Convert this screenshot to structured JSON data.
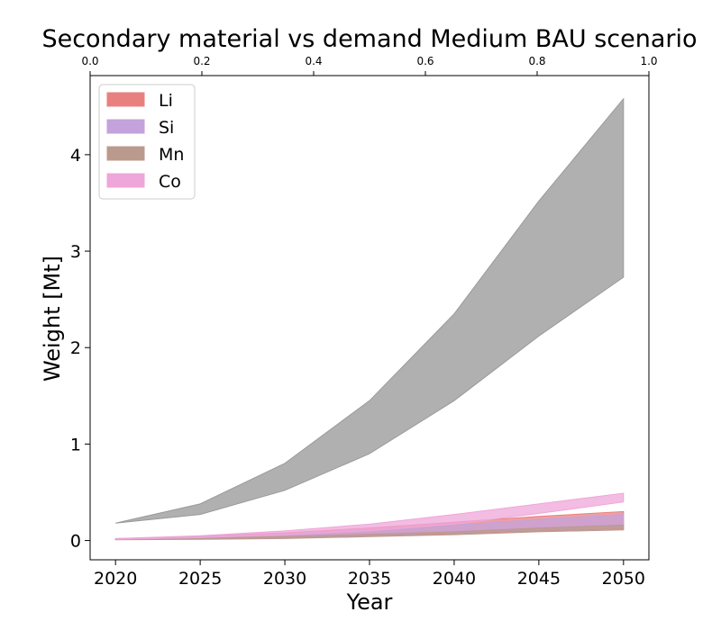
{
  "chart_data": {
    "type": "area",
    "title": "Secondary material vs demand Medium BAU scenario",
    "xlabel": "Year",
    "ylabel": "Weight [Mt]",
    "xlim": [
      2018.5,
      2051.5
    ],
    "ylim": [
      -0.2,
      4.82
    ],
    "x_ticks": [
      2020,
      2025,
      2030,
      2035,
      2040,
      2045,
      2050
    ],
    "y_ticks": [
      0,
      1,
      2,
      3,
      4
    ],
    "top_axis": {
      "lim": [
        0,
        1
      ],
      "ticks": [
        "0.0",
        "0.2",
        "0.4",
        "0.6",
        "0.8",
        "1.0"
      ]
    },
    "legend_position": "upper-left",
    "grid": false,
    "x": [
      2020,
      2025,
      2030,
      2035,
      2040,
      2045,
      2050
    ],
    "demand_band": {
      "color": "#b0b0b0",
      "lower": [
        0.18,
        0.27,
        0.52,
        0.9,
        1.45,
        2.12,
        2.73
      ],
      "upper": [
        0.18,
        0.38,
        0.8,
        1.45,
        2.35,
        3.52,
        4.58
      ]
    },
    "series": [
      {
        "name": "Li",
        "color": "#e98080",
        "lower": [
          0.01,
          0.018,
          0.025,
          0.045,
          0.07,
          0.1,
          0.12
        ],
        "upper": [
          0.015,
          0.045,
          0.08,
          0.13,
          0.19,
          0.25,
          0.3
        ]
      },
      {
        "name": "Si",
        "color": "#c4a2dc",
        "lower": [
          0.01,
          0.02,
          0.03,
          0.05,
          0.08,
          0.11,
          0.14
        ],
        "upper": [
          0.02,
          0.04,
          0.07,
          0.11,
          0.16,
          0.22,
          0.27
        ]
      },
      {
        "name": "Mn",
        "color": "#bb9a8e",
        "lower": [
          0.008,
          0.012,
          0.02,
          0.04,
          0.06,
          0.09,
          0.11
        ],
        "upper": [
          0.012,
          0.025,
          0.04,
          0.065,
          0.09,
          0.13,
          0.16
        ]
      },
      {
        "name": "Co",
        "color": "#efa6d9",
        "lower": [
          0.012,
          0.03,
          0.06,
          0.1,
          0.17,
          0.28,
          0.4
        ],
        "upper": [
          0.02,
          0.05,
          0.1,
          0.17,
          0.27,
          0.38,
          0.49
        ]
      }
    ]
  }
}
